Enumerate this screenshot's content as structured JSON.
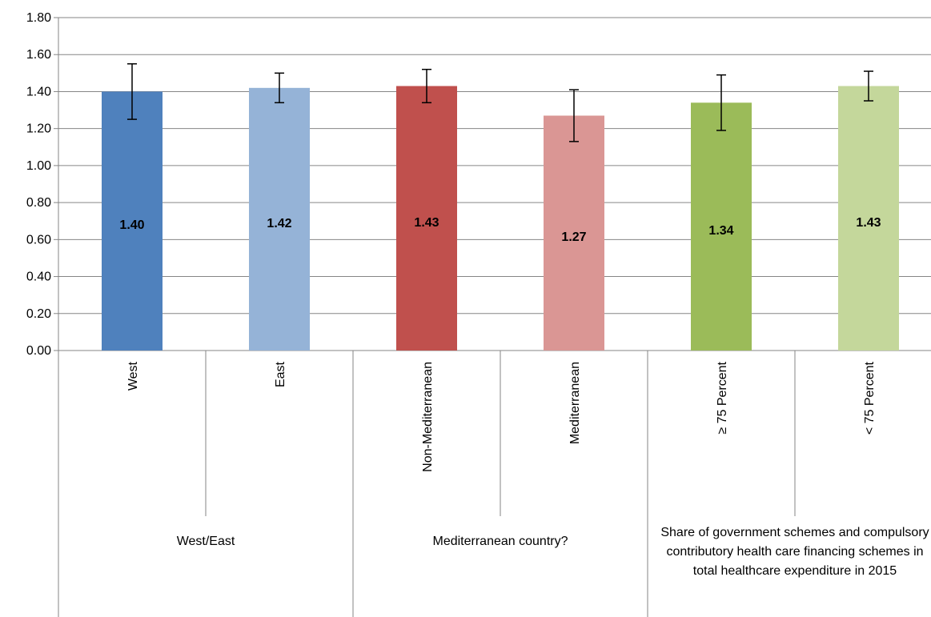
{
  "chart_data": {
    "type": "bar",
    "categories": [
      "West",
      "East",
      "Non-Mediterranean",
      "Mediterranean",
      "≥ 75 Percent",
      "< 75 Percent"
    ],
    "category_groups": [
      "West/East",
      "Mediterranean country?",
      "Share of government schemes and compulsory contributory health care financing schemes in total healthcare expenditure in 2015"
    ],
    "values": [
      1.4,
      1.42,
      1.43,
      1.27,
      1.34,
      1.43
    ],
    "value_labels": [
      "1.40",
      "1.42",
      "1.43",
      "1.27",
      "1.34",
      "1.43"
    ],
    "errors": [
      0.15,
      0.08,
      0.09,
      0.14,
      0.15,
      0.08
    ],
    "colors": [
      "#4f81bd",
      "#95b3d7",
      "#c0504d",
      "#da9694",
      "#9bbb59",
      "#c4d79b"
    ],
    "ylim": [
      0,
      1.8
    ],
    "yticks": [
      {
        "value": 0,
        "label": "0.00"
      },
      {
        "value": 0.2,
        "label": "0.20"
      },
      {
        "value": 0.4,
        "label": "0.40"
      },
      {
        "value": 0.6,
        "label": "0.60"
      },
      {
        "value": 0.8,
        "label": "0.80"
      },
      {
        "value": 1,
        "label": "1.00"
      },
      {
        "value": 1.2,
        "label": "1.20"
      },
      {
        "value": 1.4,
        "label": "1.40"
      },
      {
        "value": 1.6,
        "label": "1.60"
      },
      {
        "value": 1.8,
        "label": "1.80"
      }
    ],
    "grid": true
  }
}
